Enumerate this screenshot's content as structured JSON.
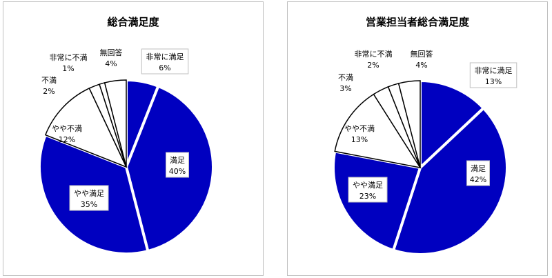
{
  "colors": {
    "dark": "#0000c0",
    "light": "#ffffff",
    "stroke": "#000000",
    "label_text_on_dark": "#000000",
    "label_box_border": "#bfbfbf"
  },
  "chart_data": [
    {
      "type": "pie",
      "title": "総合満足度",
      "slices": [
        {
          "label": "非常に満足",
          "value": 6,
          "display": "6%",
          "fill": "dark"
        },
        {
          "label": "満足",
          "value": 40,
          "display": "40%",
          "fill": "dark"
        },
        {
          "label": "やや満足",
          "value": 35,
          "display": "35%",
          "fill": "dark"
        },
        {
          "label": "やや不満",
          "value": 12,
          "display": "12%",
          "fill": "light"
        },
        {
          "label": "不満",
          "value": 2,
          "display": "2%",
          "fill": "light"
        },
        {
          "label": "非常に不満",
          "value": 1,
          "display": "1%",
          "fill": "light"
        },
        {
          "label": "無回答",
          "value": 4,
          "display": "4%",
          "fill": "light"
        }
      ]
    },
    {
      "type": "pie",
      "title": "営業担当者総合満足度",
      "slices": [
        {
          "label": "非常に満足",
          "value": 13,
          "display": "13%",
          "fill": "dark"
        },
        {
          "label": "満足",
          "value": 42,
          "display": "42%",
          "fill": "dark"
        },
        {
          "label": "やや満足",
          "value": 23,
          "display": "23%",
          "fill": "dark"
        },
        {
          "label": "やや不満",
          "value": 13,
          "display": "13%",
          "fill": "light"
        },
        {
          "label": "不満",
          "value": 3,
          "display": "3%",
          "fill": "light"
        },
        {
          "label": "非常に不満",
          "value": 2,
          "display": "2%",
          "fill": "light"
        },
        {
          "label": "無回答",
          "value": 4,
          "display": "4%",
          "fill": "light"
        }
      ]
    }
  ]
}
